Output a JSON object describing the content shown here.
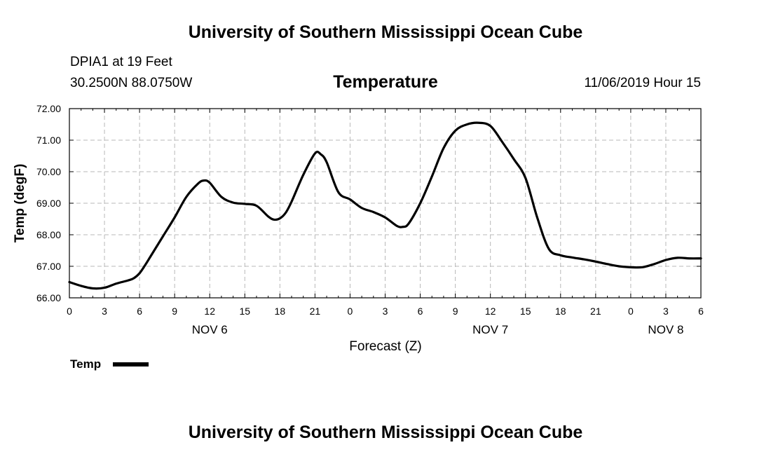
{
  "header": {
    "title": "University of Southern Mississippi Ocean Cube",
    "station": "DPIA1 at 19 Feet",
    "coords": "30.2500N 88.0750W",
    "variable": "Temperature",
    "timestamp": "11/06/2019 Hour 15"
  },
  "footer": {
    "title": "University of Southern Mississippi Ocean Cube"
  },
  "colors": {
    "line": "#000000",
    "grid": "#b8b8b8",
    "background": "#ffffff"
  },
  "chart_data": {
    "type": "line",
    "title": "Temperature",
    "xlabel": "Forecast (Z)",
    "ylabel": "Temp (degF)",
    "xlim": [
      0,
      54
    ],
    "ylim": [
      66,
      72
    ],
    "grid": true,
    "x_tick_values": [
      0,
      3,
      6,
      9,
      12,
      15,
      18,
      21,
      24,
      27,
      30,
      33,
      36,
      39,
      42,
      45,
      48,
      51,
      54
    ],
    "x_tick_labels": [
      "0",
      "3",
      "6",
      "9",
      "12",
      "15",
      "18",
      "21",
      "0",
      "3",
      "6",
      "9",
      "12",
      "15",
      "18",
      "21",
      "0",
      "3",
      "6"
    ],
    "y_tick_values": [
      66,
      67,
      68,
      69,
      70,
      71,
      72
    ],
    "y_tick_labels": [
      "66.00",
      "67.00",
      "68.00",
      "69.00",
      "70.00",
      "71.00",
      "72.00"
    ],
    "date_labels": [
      {
        "label": "NOV 6",
        "x": 12
      },
      {
        "label": "NOV 7",
        "x": 36
      },
      {
        "label": "NOV 8",
        "x": 51
      }
    ],
    "legend": {
      "label": "Temp",
      "position": "bottom-left"
    },
    "series": [
      {
        "name": "Temp",
        "x": [
          0,
          1,
          2,
          3,
          4,
          5,
          5.5,
          6,
          6.5,
          7,
          8,
          9,
          10,
          11,
          11.5,
          12,
          13,
          14,
          15,
          16,
          17,
          17.5,
          18,
          18.5,
          19,
          20,
          21,
          21.5,
          22,
          23,
          24,
          25,
          26,
          27,
          28,
          28.5,
          29,
          30,
          31,
          32,
          33,
          34,
          35,
          36,
          37,
          38,
          39,
          40,
          41,
          42,
          43,
          44,
          45,
          46,
          47,
          48,
          49,
          50,
          51,
          52,
          53,
          54
        ],
        "values": [
          66.5,
          66.38,
          66.3,
          66.32,
          66.45,
          66.55,
          66.62,
          66.78,
          67.05,
          67.35,
          67.95,
          68.55,
          69.2,
          69.62,
          69.72,
          69.65,
          69.2,
          69.02,
          68.98,
          68.92,
          68.58,
          68.48,
          68.52,
          68.7,
          69.05,
          69.9,
          70.58,
          70.55,
          70.3,
          69.35,
          69.12,
          68.85,
          68.72,
          68.55,
          68.28,
          68.25,
          68.35,
          69.0,
          69.85,
          70.75,
          71.3,
          71.5,
          71.55,
          71.45,
          70.95,
          70.4,
          69.8,
          68.55,
          67.55,
          67.35,
          67.28,
          67.22,
          67.15,
          67.07,
          67.0,
          66.97,
          66.97,
          67.07,
          67.2,
          67.27,
          67.25,
          67.25
        ]
      }
    ]
  }
}
